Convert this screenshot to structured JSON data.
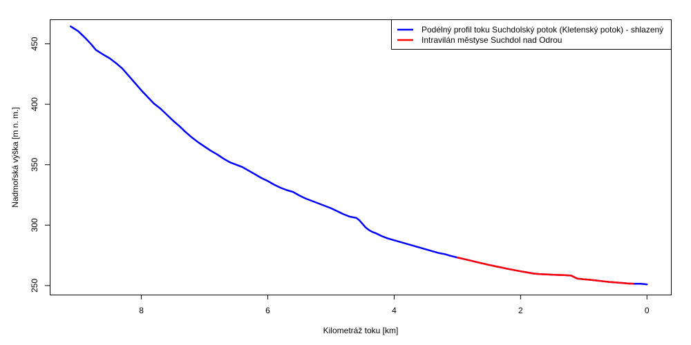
{
  "chart_data": {
    "type": "line",
    "title": "",
    "xlabel": "Kilometráž toku [km]",
    "ylabel": "Nadmořská výška [m n. m.]",
    "x_reversed": true,
    "xlim": [
      9.45,
      -0.38
    ],
    "ylim": [
      242.5,
      470.3
    ],
    "x_ticks": [
      8,
      6,
      4,
      2,
      0
    ],
    "y_ticks": [
      250,
      300,
      350,
      400,
      450
    ],
    "grid": false,
    "legend_position": "top-right",
    "series": [
      {
        "name": "Podélný profil toku Suchdolský potok (Kletenský potok) - shlazený",
        "color": "#0000ff",
        "x": [
          9.12,
          9.0,
          8.9,
          8.8,
          8.72,
          8.6,
          8.5,
          8.4,
          8.3,
          8.2,
          8.1,
          8.0,
          7.9,
          7.8,
          7.7,
          7.6,
          7.5,
          7.4,
          7.3,
          7.2,
          7.1,
          7.0,
          6.9,
          6.8,
          6.7,
          6.6,
          6.5,
          6.4,
          6.3,
          6.2,
          6.1,
          6.0,
          5.9,
          5.8,
          5.7,
          5.6,
          5.5,
          5.4,
          5.3,
          5.2,
          5.1,
          5.0,
          4.9,
          4.8,
          4.7,
          4.6,
          4.55,
          4.5,
          4.45,
          4.4,
          4.35,
          4.3,
          4.2,
          4.1,
          4.0,
          3.9,
          3.8,
          3.7,
          3.6,
          3.5,
          3.4,
          3.3,
          3.2,
          3.1,
          3.0,
          2.9,
          2.8,
          2.7,
          2.6,
          2.5,
          2.4,
          2.3,
          2.2,
          2.1,
          2.0,
          1.9,
          1.8,
          1.7,
          1.6,
          1.5,
          1.4,
          1.3,
          1.2,
          1.15,
          1.1,
          1.05,
          1.0,
          0.9,
          0.8,
          0.7,
          0.6,
          0.5,
          0.4,
          0.3,
          0.2,
          0.1,
          0.0
        ],
        "y": [
          464.5,
          460.5,
          455.5,
          450.0,
          445.0,
          441.0,
          438.0,
          434.0,
          429.5,
          423.5,
          417.5,
          411.5,
          406.0,
          400.5,
          396.5,
          391.5,
          386.5,
          382.0,
          377.0,
          372.5,
          368.5,
          365.0,
          361.5,
          358.5,
          355.0,
          352.0,
          350.0,
          348.0,
          345.0,
          342.0,
          339.0,
          336.5,
          333.5,
          331.0,
          329.0,
          327.5,
          324.5,
          322.0,
          320.0,
          318.0,
          316.0,
          314.0,
          311.5,
          309.0,
          307.0,
          306.0,
          304.0,
          301.0,
          298.0,
          296.0,
          294.5,
          293.5,
          291.0,
          289.0,
          287.5,
          286.0,
          284.5,
          283.0,
          281.5,
          280.0,
          278.5,
          277.0,
          276.0,
          274.5,
          273.2,
          272.0,
          270.8,
          269.5,
          268.3,
          267.1,
          266.0,
          264.9,
          263.8,
          262.8,
          261.8,
          260.9,
          260.0,
          259.5,
          259.3,
          259.0,
          258.8,
          258.6,
          258.3,
          257.0,
          255.8,
          255.5,
          255.2,
          254.8,
          254.2,
          253.6,
          253.0,
          252.6,
          252.2,
          251.7,
          251.5,
          251.5,
          251.0
        ]
      },
      {
        "name": "Intravilán městyse Suchdol nad Odrou",
        "color": "#ff0000",
        "x": [
          3.0,
          2.9,
          2.8,
          2.7,
          2.6,
          2.5,
          2.4,
          2.3,
          2.2,
          2.1,
          2.0,
          1.9,
          1.8,
          1.7,
          1.6,
          1.5,
          1.4,
          1.3,
          1.2,
          1.15,
          1.1,
          1.05,
          1.0,
          0.9,
          0.8,
          0.7,
          0.6,
          0.5,
          0.4,
          0.3,
          0.22
        ],
        "y": [
          273.2,
          272.0,
          270.8,
          269.5,
          268.3,
          267.1,
          266.0,
          264.9,
          263.8,
          262.8,
          261.8,
          260.9,
          260.0,
          259.5,
          259.3,
          259.0,
          258.8,
          258.6,
          258.3,
          257.0,
          255.8,
          255.5,
          255.2,
          254.8,
          254.2,
          253.6,
          253.0,
          252.6,
          252.2,
          251.7,
          251.5
        ]
      }
    ]
  }
}
